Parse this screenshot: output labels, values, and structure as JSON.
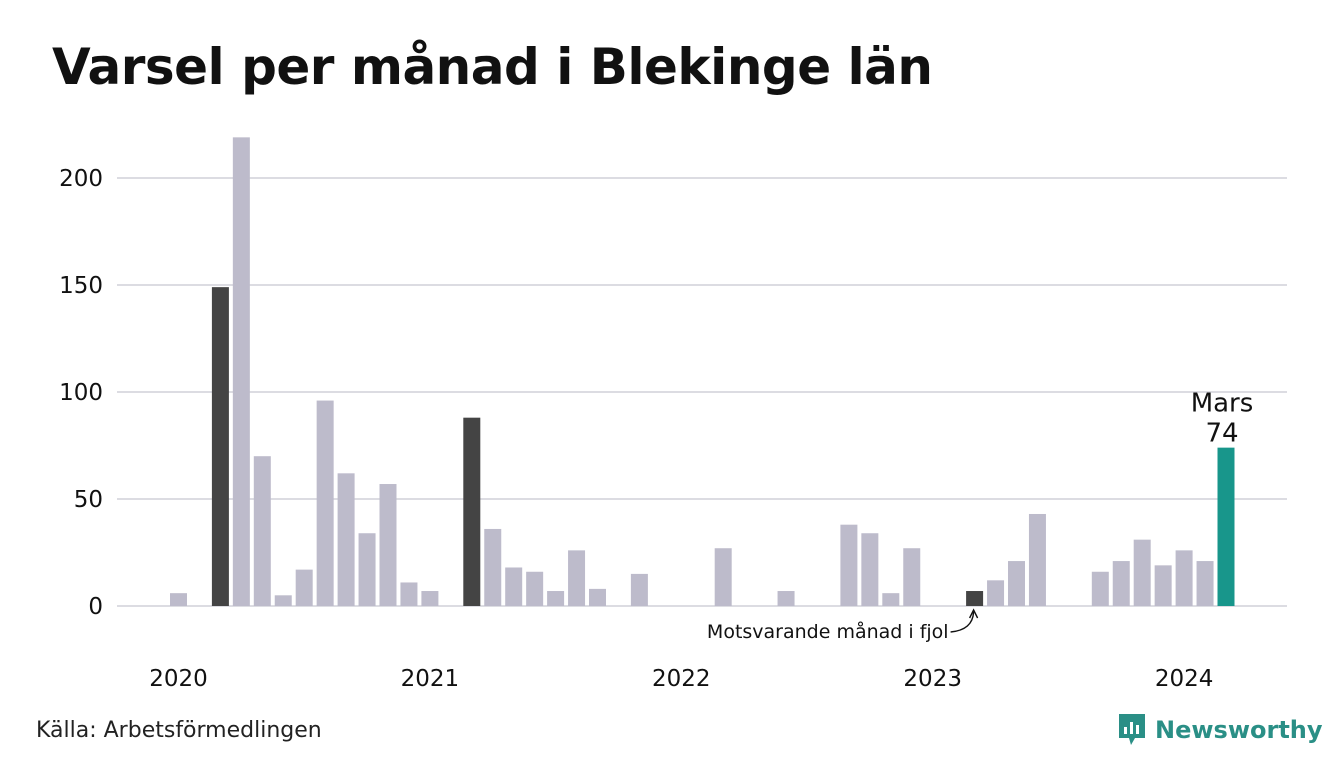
{
  "title": "Varsel per månad i Blekinge län",
  "source": "Källa: Arbetsförmedlingen",
  "brand": {
    "name": "Newsworthy",
    "icon": "newsworthy-logo-icon",
    "color": "#2a8f86"
  },
  "chart_data": {
    "type": "bar",
    "title": "Varsel per månad i Blekinge län",
    "xlabel": "",
    "ylabel": "",
    "ylim": [
      0,
      220
    ],
    "yticks": [
      0,
      50,
      100,
      150,
      200
    ],
    "x_ticks": [
      {
        "label": "2020",
        "month_index": 0
      },
      {
        "label": "2021",
        "month_index": 12
      },
      {
        "label": "2022",
        "month_index": 24
      },
      {
        "label": "2023",
        "month_index": 36
      },
      {
        "label": "2024",
        "month_index": 48
      }
    ],
    "grid": true,
    "colors": {
      "default": "#bdbbcb",
      "same_month": "#444444",
      "current": "#18968b"
    },
    "values": [
      6,
      0,
      149,
      219,
      70,
      5,
      17,
      96,
      62,
      34,
      57,
      11,
      7,
      0,
      88,
      36,
      18,
      16,
      7,
      26,
      8,
      0,
      15,
      0,
      0,
      0,
      27,
      0,
      0,
      7,
      0,
      0,
      38,
      34,
      6,
      27,
      0,
      0,
      7,
      12,
      21,
      43,
      0,
      0,
      16,
      21,
      31,
      19,
      26,
      21,
      74
    ],
    "highlight": {
      "same_month": [
        2,
        14,
        38
      ],
      "current": 50
    },
    "annotations": [
      {
        "text": "Mars",
        "value_label": "74",
        "month_index": 50
      },
      {
        "text": "Motsvarande månad i fjol",
        "month_index": 38
      }
    ]
  }
}
